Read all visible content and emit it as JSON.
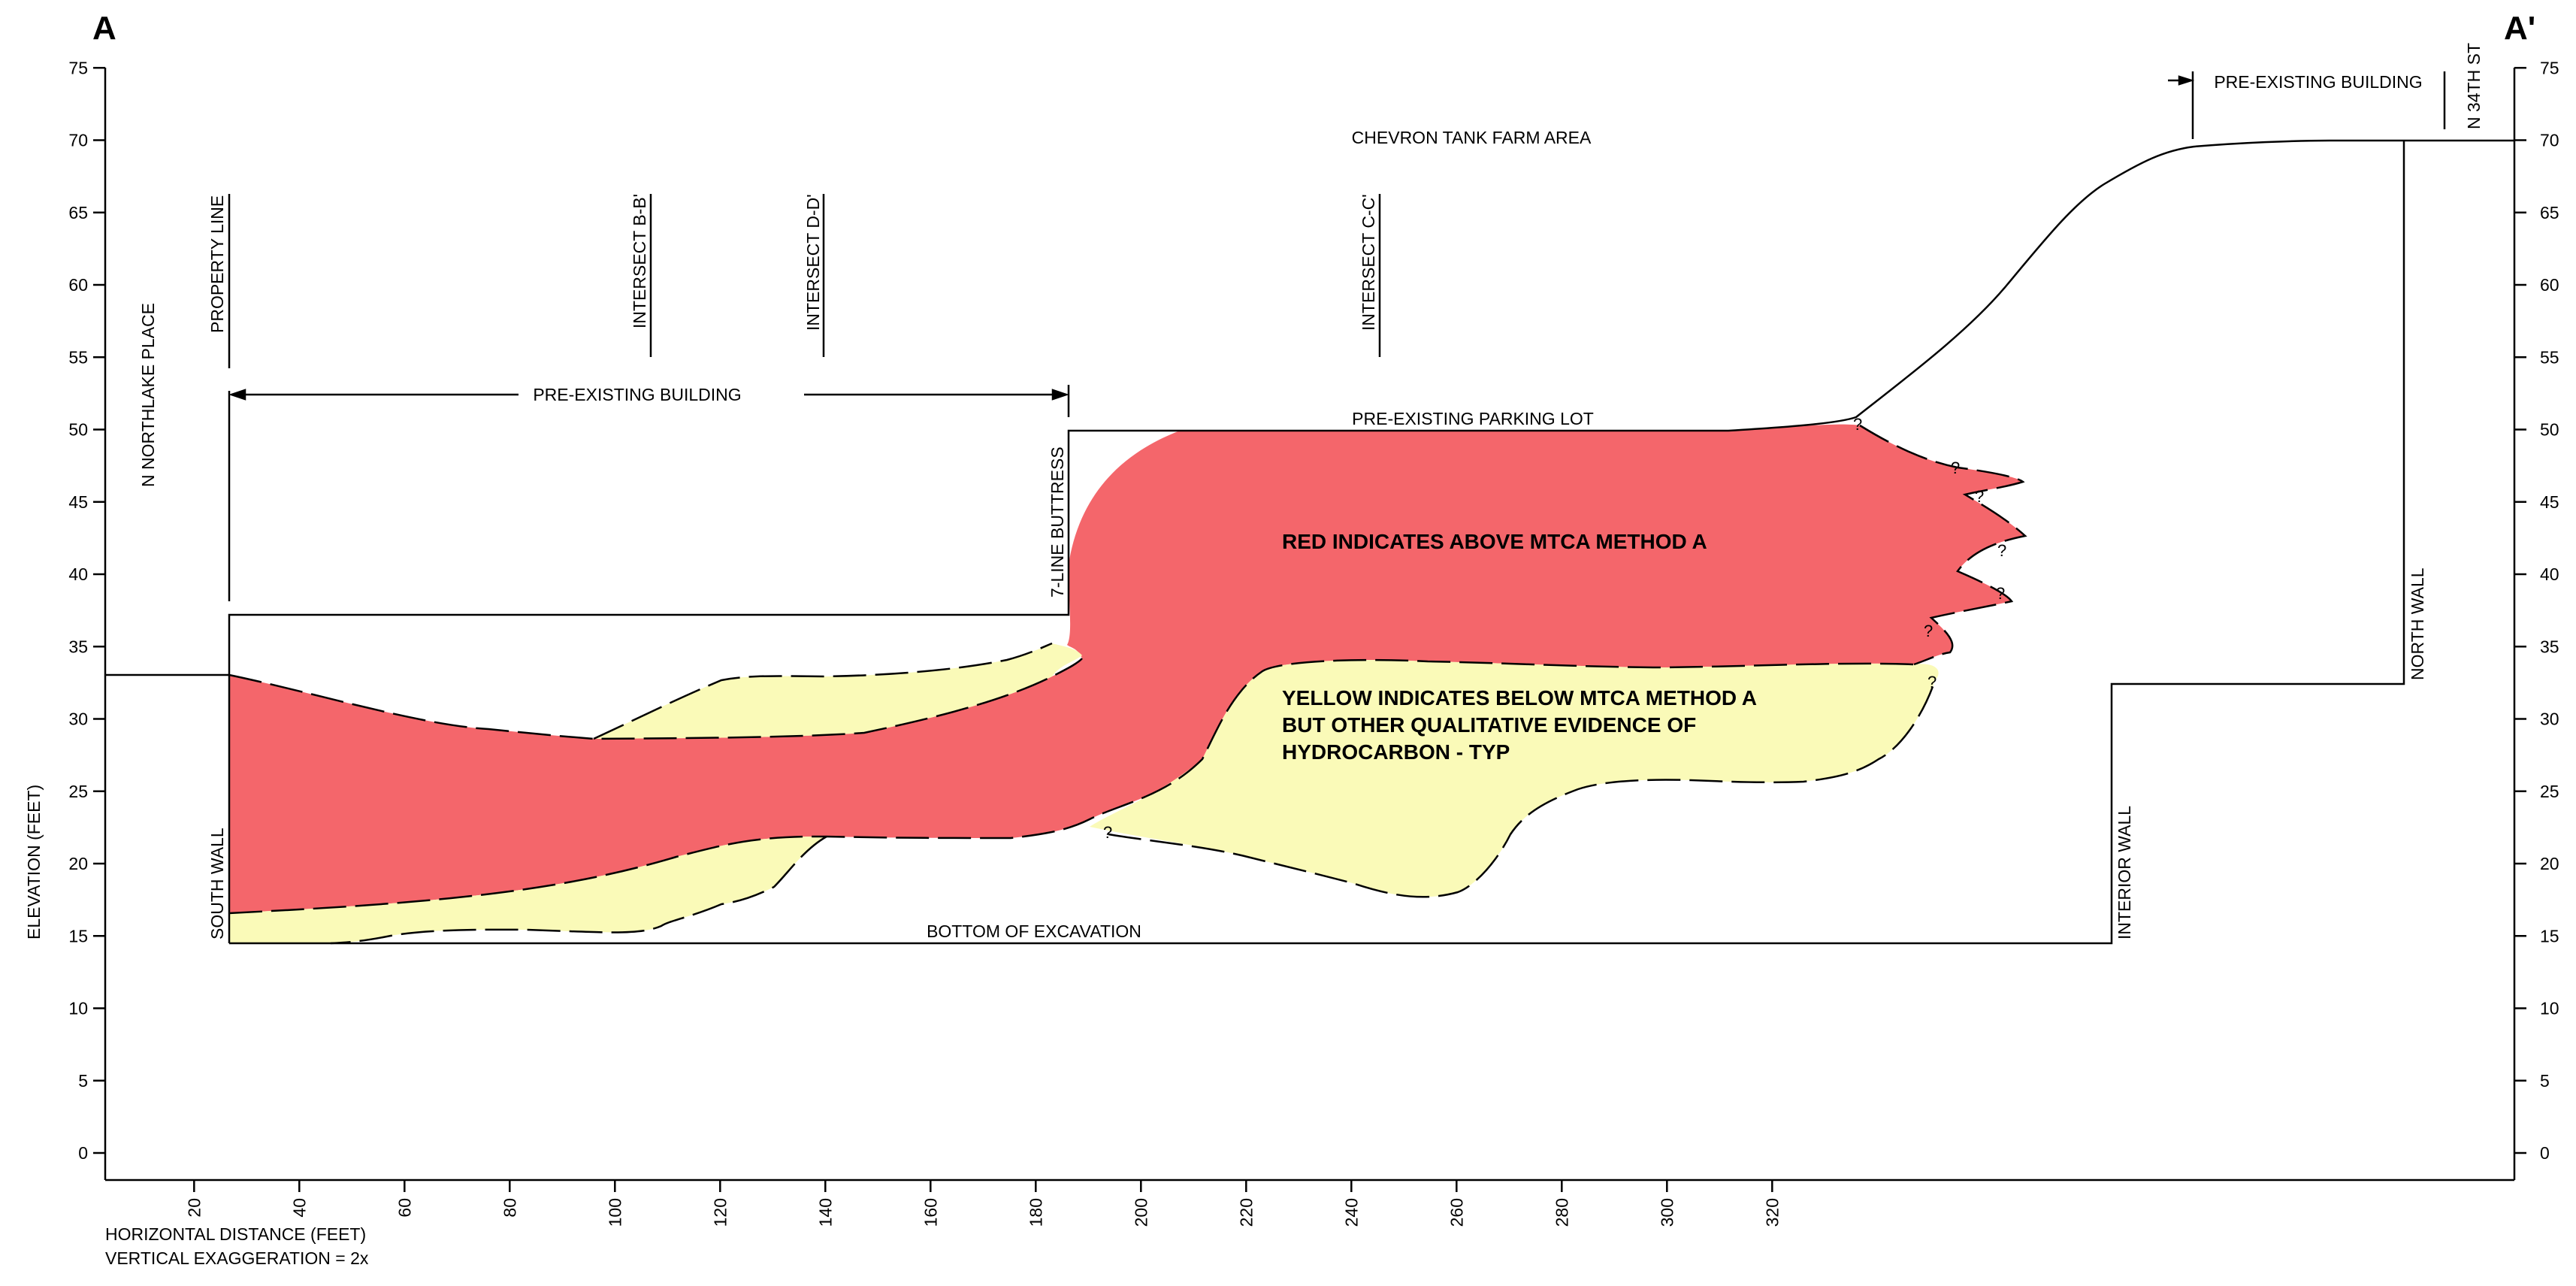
{
  "section": {
    "start_label": "A",
    "end_label": "A'"
  },
  "axes": {
    "y_label": "ELEVATION (FEET)",
    "x_label": "HORIZONTAL DISTANCE  (FEET)",
    "exaggeration": "VERTICAL EXAGGERATION = 2x",
    "y_ticks": [
      "75",
      "70",
      "65",
      "60",
      "55",
      "50",
      "45",
      "40",
      "35",
      "30",
      "25",
      "20",
      "15",
      "10",
      "5",
      "0"
    ],
    "x_ticks": [
      "20",
      "40",
      "60",
      "80",
      "100",
      "120",
      "140",
      "160",
      "180",
      "200",
      "220",
      "240",
      "260",
      "280",
      "300",
      "320"
    ]
  },
  "labels": {
    "north_place": "N  NORTHLAKE  PLACE",
    "property_line": "PROPERTY LINE",
    "intersect_b": "INTERSECT B-B'",
    "intersect_d": "INTERSECT D-D'",
    "intersect_c": "INTERSECT C-C'",
    "tank_farm": "CHEVRON TANK FARM AREA",
    "building_left": "PRE-EXISTING BUILDING",
    "building_right": "PRE-EXISTING BUILDING",
    "parking_lot": "PRE-EXISTING PARKING LOT",
    "buttress": "7-LINE BUTTRESS",
    "south_wall": "SOUTH WALL",
    "bottom": "BOTTOM OF EXCAVATION",
    "interior_wall": "INTERIOR WALL",
    "north_wall": "NORTH WALL",
    "street": "N  34TH ST",
    "red_note": "RED INDICATES ABOVE MTCA METHOD A",
    "yellow_note_1": "YELLOW INDICATES BELOW MTCA METHOD A",
    "yellow_note_2": "BUT OTHER QUALITATIVE EVIDENCE OF",
    "yellow_note_3": "HYDROCARBON - TYP",
    "uncertain": "?"
  },
  "colors": {
    "above_mtca": "#f4666b",
    "below_mtca": "#fafab8",
    "line": "#000000"
  }
}
